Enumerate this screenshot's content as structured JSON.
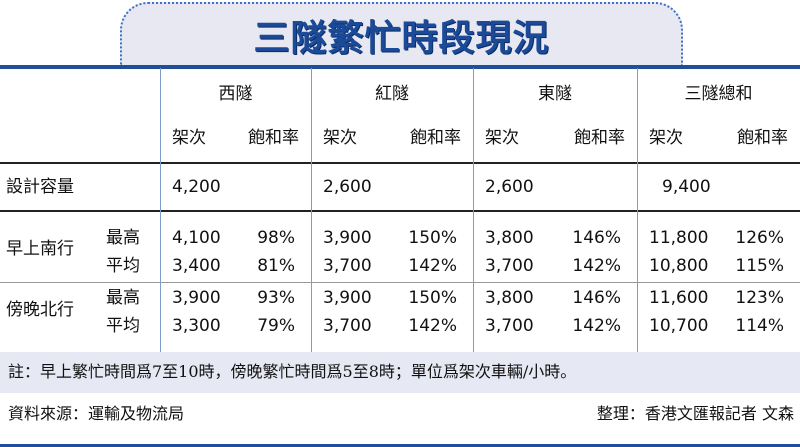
{
  "title": "三隧繁忙時段現況",
  "columns": [
    {
      "name": "西隧",
      "sub": [
        "架次",
        "飽和率"
      ]
    },
    {
      "name": "紅隧",
      "sub": [
        "架次",
        "飽和率"
      ]
    },
    {
      "name": "東隧",
      "sub": [
        "架次",
        "飽和率"
      ]
    },
    {
      "name": "三隧總和",
      "sub": [
        "架次",
        "飽和率"
      ]
    }
  ],
  "capacity": {
    "label": "設計容量",
    "values": [
      "4,200",
      "2,600",
      "2,600",
      "9,400"
    ]
  },
  "groups": [
    {
      "label": "早上南行",
      "rows": [
        {
          "label": "最高",
          "cells": [
            [
              "4,100",
              "98%"
            ],
            [
              "3,900",
              "150%"
            ],
            [
              "3,800",
              "146%"
            ],
            [
              "11,800",
              "126%"
            ]
          ]
        },
        {
          "label": "平均",
          "cells": [
            [
              "3,400",
              "81%"
            ],
            [
              "3,700",
              "142%"
            ],
            [
              "3,700",
              "142%"
            ],
            [
              "10,800",
              "115%"
            ]
          ]
        }
      ]
    },
    {
      "label": "傍晚北行",
      "rows": [
        {
          "label": "最高",
          "cells": [
            [
              "3,900",
              "93%"
            ],
            [
              "3,900",
              "150%"
            ],
            [
              "3,800",
              "146%"
            ],
            [
              "11,600",
              "123%"
            ]
          ]
        },
        {
          "label": "平均",
          "cells": [
            [
              "3,300",
              "79%"
            ],
            [
              "3,700",
              "142%"
            ],
            [
              "3,700",
              "142%"
            ],
            [
              "10,700",
              "114%"
            ]
          ]
        }
      ]
    }
  ],
  "note": "註：早上繁忙時間爲7至10時，傍晚繁忙時間爲5至8時；單位爲架次車輛/小時。",
  "source": "資料來源：運輸及物流局",
  "credit": "整理：香港文匯報記者 文森",
  "colors": {
    "accent": "#1b4a98",
    "panel": "#e8e8f3"
  }
}
